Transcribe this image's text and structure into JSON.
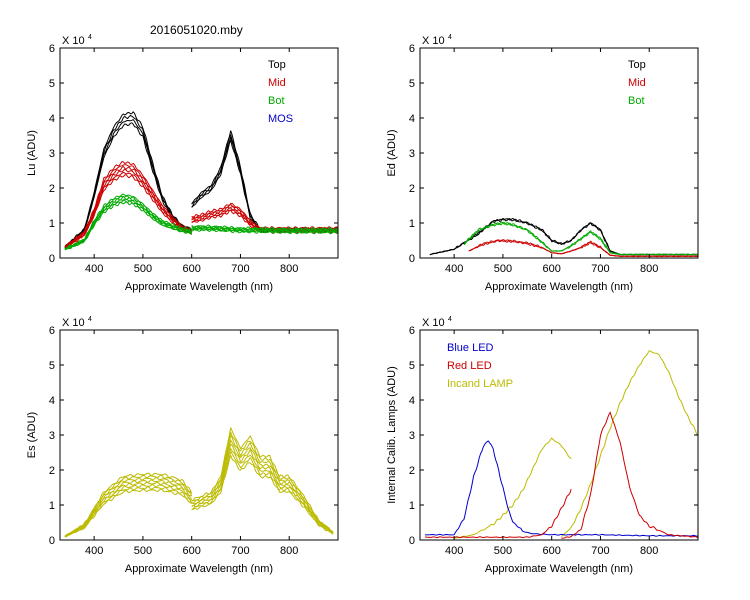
{
  "figure": {
    "filename": "2016051020.mby"
  },
  "chart_data": [
    {
      "id": "lu",
      "type": "line",
      "ylabel": "Lu (ADU)",
      "xlabel": "Approximate Wavelength (nm)",
      "xlim": [
        330,
        900
      ],
      "ylim": [
        0,
        6
      ],
      "xticks": [
        400,
        500,
        600,
        700,
        800
      ],
      "yticks": [
        0,
        1,
        2,
        3,
        4,
        5,
        6
      ],
      "multiplier": "X 10",
      "multiplier_exp": "4",
      "legend": [
        {
          "label": "Top",
          "color": "#000000"
        },
        {
          "label": "Mid",
          "color": "#cc0000"
        },
        {
          "label": "Bot",
          "color": "#00aa00"
        },
        {
          "label": "MOS",
          "color": "#0000cc"
        }
      ],
      "series": [
        {
          "name": "Top",
          "color": "#000000",
          "count": 4,
          "spread": 0.08,
          "segments": [
            {
              "x": [
                340,
                380,
                400,
                420,
                440,
                460,
                480,
                500,
                520,
                540,
                560,
                580,
                600
              ],
              "y": [
                0.3,
                0.8,
                1.8,
                3.0,
                3.6,
                3.95,
                4.0,
                3.6,
                2.6,
                1.7,
                1.2,
                0.9,
                0.8
              ]
            },
            {
              "x": [
                600,
                620,
                640,
                660,
                680,
                700,
                720,
                740,
                800,
                900
              ],
              "y": [
                1.5,
                1.8,
                2.0,
                2.5,
                3.5,
                2.5,
                1.2,
                0.8,
                0.8,
                0.8
              ]
            }
          ]
        },
        {
          "name": "Mid",
          "color": "#cc0000",
          "count": 6,
          "spread": 0.09,
          "segments": [
            {
              "x": [
                340,
                380,
                400,
                420,
                440,
                460,
                480,
                500,
                520,
                540,
                560,
                580,
                600
              ],
              "y": [
                0.3,
                0.7,
                1.3,
                2.1,
                2.4,
                2.55,
                2.5,
                2.2,
                1.8,
                1.4,
                1.1,
                0.85,
                0.75
              ]
            },
            {
              "x": [
                600,
                620,
                640,
                660,
                680,
                700,
                720,
                740,
                800,
                900
              ],
              "y": [
                1.1,
                1.15,
                1.25,
                1.3,
                1.45,
                1.3,
                1.0,
                0.8,
                0.8,
                0.8
              ]
            }
          ]
        },
        {
          "name": "Bot",
          "color": "#00aa00",
          "count": 6,
          "spread": 0.08,
          "segments": [
            {
              "x": [
                340,
                380,
                400,
                420,
                440,
                460,
                480,
                500,
                520,
                540,
                560,
                580,
                600
              ],
              "y": [
                0.25,
                0.5,
                1.0,
                1.4,
                1.6,
                1.7,
                1.65,
                1.45,
                1.2,
                1.0,
                0.9,
                0.8,
                0.75
              ]
            },
            {
              "x": [
                600,
                640,
                700,
                800,
                900
              ],
              "y": [
                0.85,
                0.85,
                0.8,
                0.78,
                0.78
              ]
            }
          ]
        }
      ]
    },
    {
      "id": "ed",
      "type": "line",
      "ylabel": "Ed (ADU)",
      "xlabel": "Approximate Wavelength (nm)",
      "xlim": [
        330,
        900
      ],
      "ylim": [
        0,
        6
      ],
      "xticks": [
        400,
        500,
        600,
        700,
        800
      ],
      "yticks": [
        0,
        1,
        2,
        3,
        4,
        5,
        6
      ],
      "multiplier": "X 10",
      "multiplier_exp": "4",
      "legend": [
        {
          "label": "Top",
          "color": "#000000"
        },
        {
          "label": "Mid",
          "color": "#cc0000"
        },
        {
          "label": "Bot",
          "color": "#00aa00"
        }
      ],
      "series": [
        {
          "name": "Top",
          "color": "#000000",
          "count": 2,
          "spread": 0.03,
          "segments": [
            {
              "x": [
                350,
                400,
                450,
                480,
                500,
                520,
                550,
                580,
                600,
                620,
                640,
                660,
                680,
                700,
                720,
                740,
                800,
                900
              ],
              "y": [
                0.1,
                0.25,
                0.7,
                1.05,
                1.1,
                1.1,
                1.0,
                0.8,
                0.5,
                0.4,
                0.5,
                0.8,
                1.0,
                0.8,
                0.2,
                0.1,
                0.1,
                0.1
              ]
            }
          ]
        },
        {
          "name": "Bot",
          "color": "#00aa00",
          "count": 2,
          "spread": 0.03,
          "segments": [
            {
              "x": [
                420,
                450,
                480,
                500,
                520,
                550,
                580,
                600,
                620,
                640,
                660,
                680,
                700,
                720,
                740,
                800,
                900
              ],
              "y": [
                0.4,
                0.8,
                0.95,
                1.0,
                0.95,
                0.8,
                0.45,
                0.2,
                0.2,
                0.35,
                0.55,
                0.75,
                0.55,
                0.15,
                0.1,
                0.1,
                0.1
              ]
            }
          ]
        },
        {
          "name": "Mid",
          "color": "#cc0000",
          "count": 2,
          "spread": 0.02,
          "segments": [
            {
              "x": [
                430,
                460,
                490,
                520,
                550,
                580,
                600,
                620,
                640,
                660,
                680,
                700,
                720,
                740,
                800,
                900
              ],
              "y": [
                0.2,
                0.4,
                0.5,
                0.48,
                0.42,
                0.3,
                0.15,
                0.12,
                0.2,
                0.3,
                0.45,
                0.3,
                0.08,
                0.05,
                0.05,
                0.05
              ]
            }
          ]
        }
      ]
    },
    {
      "id": "es",
      "type": "line",
      "ylabel": "Es (ADU)",
      "xlabel": "Approximate Wavelength (nm)",
      "xlim": [
        330,
        900
      ],
      "ylim": [
        0,
        6
      ],
      "xticks": [
        400,
        500,
        600,
        700,
        800
      ],
      "yticks": [
        0,
        1,
        2,
        3,
        4,
        5,
        6
      ],
      "multiplier": "X 10",
      "multiplier_exp": "4",
      "legend": [],
      "series": [
        {
          "name": "Es",
          "color": "#bbbb00",
          "count": 8,
          "spread": 0.12,
          "segments": [
            {
              "x": [
                340,
                380,
                420,
                460,
                500,
                540,
                580,
                600
              ],
              "y": [
                0.1,
                0.4,
                1.2,
                1.6,
                1.65,
                1.65,
                1.5,
                1.2
              ]
            },
            {
              "x": [
                600,
                640,
                660,
                680,
                700,
                720,
                740,
                760,
                780,
                800,
                830,
                860,
                890
              ],
              "y": [
                1.0,
                1.2,
                1.6,
                2.8,
                2.3,
                2.6,
                2.1,
                2.1,
                1.6,
                1.6,
                1.1,
                0.5,
                0.2
              ]
            }
          ]
        }
      ]
    },
    {
      "id": "lamps",
      "type": "line",
      "ylabel": "Internal Calib. Lamps (ADU)",
      "xlabel": "Approximate Wavelength (nm)",
      "xlim": [
        330,
        900
      ],
      "ylim": [
        0,
        6
      ],
      "xticks": [
        400,
        500,
        600,
        700,
        800
      ],
      "yticks": [
        0,
        1,
        2,
        3,
        4,
        5,
        6
      ],
      "multiplier": "X 10",
      "multiplier_exp": "4",
      "legend": [
        {
          "label": "Blue LED",
          "color": "#0000cc"
        },
        {
          "label": "Red LED",
          "color": "#cc0000"
        },
        {
          "label": "Incand LAMP",
          "color": "#bbbb00"
        }
      ],
      "series": [
        {
          "name": "Incand LAMP",
          "color": "#bbbb00",
          "count": 1,
          "spread": 0,
          "segments": [
            {
              "x": [
                400,
                440,
                480,
                500,
                520,
                540,
                560,
                580,
                600,
                620,
                640
              ],
              "y": [
                0.05,
                0.15,
                0.45,
                0.7,
                1.0,
                1.4,
                2.0,
                2.6,
                2.9,
                2.7,
                2.3
              ]
            },
            {
              "x": [
                620,
                640,
                660,
                680,
                700,
                720,
                740,
                760,
                780,
                800,
                820,
                840,
                860,
                880,
                900
              ],
              "y": [
                0.1,
                0.35,
                0.9,
                1.6,
                2.4,
                3.2,
                3.9,
                4.5,
                5.0,
                5.4,
                5.3,
                4.8,
                4.1,
                3.5,
                3.0
              ]
            }
          ]
        },
        {
          "name": "Blue LED",
          "color": "#0000cc",
          "count": 1,
          "spread": 0,
          "segments": [
            {
              "x": [
                340,
                400,
                420,
                440,
                460,
                470,
                480,
                500,
                510,
                520,
                530,
                540,
                560,
                600,
                700,
                800,
                900
              ],
              "y": [
                0.15,
                0.15,
                0.6,
                1.8,
                2.7,
                2.82,
                2.6,
                1.5,
                0.9,
                0.55,
                0.4,
                0.25,
                0.18,
                0.15,
                0.15,
                0.12,
                0.12
              ]
            }
          ]
        },
        {
          "name": "Red LED",
          "color": "#cc0000",
          "count": 1,
          "spread": 0,
          "segments": [
            {
              "x": [
                340,
                550,
                580,
                600,
                620,
                640
              ],
              "y": [
                0.08,
                0.08,
                0.15,
                0.4,
                0.9,
                1.45
              ]
            },
            {
              "x": [
                620,
                640,
                660,
                680,
                700,
                720,
                740,
                760,
                780,
                800,
                840,
                900
              ],
              "y": [
                0.05,
                0.1,
                0.3,
                1.3,
                3.0,
                3.65,
                2.8,
                1.5,
                0.7,
                0.4,
                0.15,
                0.08
              ]
            }
          ]
        }
      ]
    }
  ]
}
